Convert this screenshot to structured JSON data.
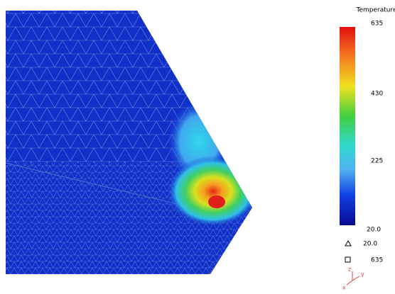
{
  "legend": {
    "title": "Temperature",
    "ticks": [
      "635",
      "430",
      "225",
      "20.0"
    ],
    "min_label": "20.0",
    "max_label": "635"
  },
  "triad": {
    "z": "z",
    "y": "y",
    "x": "x"
  }
}
